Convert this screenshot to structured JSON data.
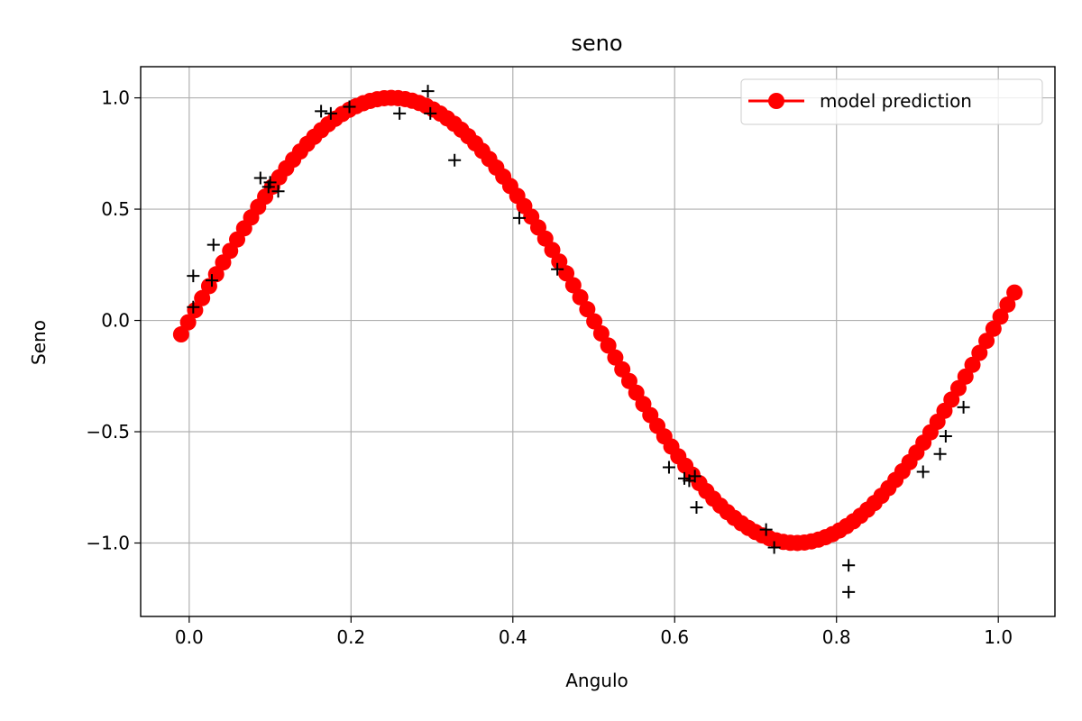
{
  "chart_data": {
    "type": "scatter",
    "title": "seno",
    "xlabel": "Angulo",
    "ylabel": "Seno",
    "xlim": [
      -0.06,
      1.07
    ],
    "ylim": [
      -1.33,
      1.14
    ],
    "grid": true,
    "legend_position": "top-right",
    "x_ticks": [
      0.0,
      0.2,
      0.4,
      0.6,
      0.8,
      1.0
    ],
    "x_tick_labels": [
      "0.0",
      "0.2",
      "0.4",
      "0.6",
      "0.8",
      "1.0"
    ],
    "y_ticks": [
      -1.0,
      -0.5,
      0.0,
      0.5,
      1.0
    ],
    "y_tick_labels": [
      "−1.0",
      "−0.5",
      "0.0",
      "0.5",
      "1.0"
    ],
    "series": [
      {
        "name": "model prediction",
        "kind": "line-marker",
        "color": "#ff0000",
        "marker": "circle",
        "generator": {
          "function": "sin(2*pi*x)",
          "x_start": -0.01,
          "x_end": 1.02,
          "count": 120
        }
      },
      {
        "kind": "marker",
        "color": "#000000",
        "marker": "plus",
        "x": [
          0.005,
          0.005,
          0.028,
          0.03,
          0.088,
          0.098,
          0.1,
          0.11,
          0.163,
          0.175,
          0.198,
          0.26,
          0.295,
          0.298,
          0.328,
          0.408,
          0.455,
          0.593,
          0.612,
          0.618,
          0.625,
          0.627,
          0.713,
          0.723,
          0.815,
          0.815,
          0.907,
          0.928,
          0.935,
          0.957
        ],
        "y": [
          0.2,
          0.06,
          0.18,
          0.34,
          0.64,
          0.6,
          0.62,
          0.58,
          0.94,
          0.93,
          0.96,
          0.93,
          1.03,
          0.93,
          0.72,
          0.46,
          0.23,
          -0.66,
          -0.71,
          -0.72,
          -0.7,
          -0.84,
          -0.94,
          -1.02,
          -1.1,
          -1.22,
          -0.68,
          -0.6,
          -0.52,
          -0.39
        ]
      }
    ]
  }
}
